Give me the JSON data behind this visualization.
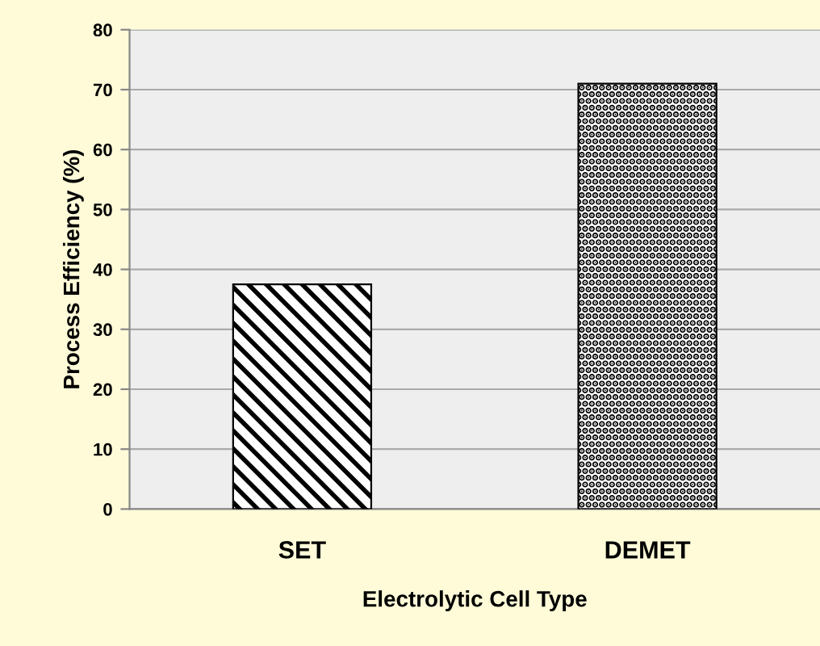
{
  "chart_data": {
    "type": "bar",
    "xlabel": "Electrolytic Cell Type",
    "ylabel": "Process Efficiency (%)",
    "categories": [
      "SET",
      "DEMET"
    ],
    "values": [
      37.5,
      71
    ],
    "colors": [
      "#000000",
      "#000000"
    ],
    "ylim": [
      0,
      80
    ],
    "yticks": [
      0,
      10,
      20,
      30,
      40,
      50,
      60,
      70,
      80
    ],
    "grid": "y"
  }
}
